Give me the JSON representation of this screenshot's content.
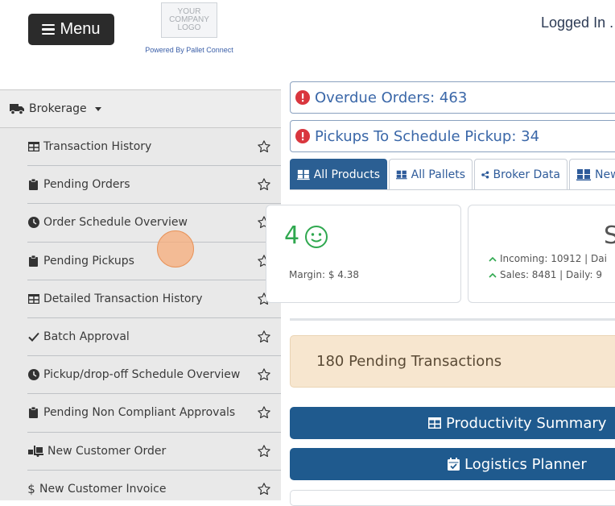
{
  "header": {
    "menu_label": "Menu",
    "logo_lines": [
      "YOUR",
      "COMPANY",
      "LOGO"
    ],
    "powered_by": "Powered By Pallet Connect",
    "logged_in": "Logged In ."
  },
  "sidebar": {
    "section": {
      "label": "Brokerage",
      "icon": "truck-icon"
    },
    "items": [
      {
        "label": "Transaction History",
        "icon": "table-icon"
      },
      {
        "label": "Pending Orders",
        "icon": "clipboard-icon"
      },
      {
        "label": "Order Schedule Overview",
        "icon": "clock-icon"
      },
      {
        "label": "Pending Pickups",
        "icon": "clipboard-icon"
      },
      {
        "label": "Detailed Transaction History",
        "icon": "table-icon"
      },
      {
        "label": "Batch Approval",
        "icon": "check-icon"
      },
      {
        "label": "Pickup/drop-off Schedule Overview",
        "icon": "clock-icon"
      },
      {
        "label": "Pending Non Compliant Approvals",
        "icon": "clipboard-icon"
      },
      {
        "label": "New Customer Order",
        "icon": "truck-loading-icon"
      },
      {
        "label": "New Customer Invoice",
        "icon": "dollar-icon"
      }
    ]
  },
  "alerts": {
    "overdue": "Overdue Orders: 463",
    "pickups": "Pickups To Schedule Pickup: 34"
  },
  "tabs": [
    {
      "label": "All Products",
      "icon": "pallets-icon",
      "active": true
    },
    {
      "label": "All Pallets",
      "icon": "pallets-icon",
      "active": false
    },
    {
      "label": "Broker Data",
      "icon": "share-icon",
      "active": false
    },
    {
      "label": "New",
      "icon": "pallets-icon",
      "active": false
    }
  ],
  "stats": {
    "left_value": "4",
    "left_margin": "Margin: $ 4.38",
    "right_value": "S",
    "incoming": "Incoming: 10912 | Dai",
    "sales": "Sales: 8481 | Daily: 9"
  },
  "pending": {
    "label": "180 Pending Transactions"
  },
  "buttons": {
    "productivity": "Productivity Summary",
    "logistics": "Logistics Planner"
  },
  "colors": {
    "primary": "#1f5a8e",
    "alert_text": "#3a67a8",
    "alert_icon": "#d9363e",
    "pending_bg": "#f7e6cf",
    "smile": "#2fa84f"
  }
}
